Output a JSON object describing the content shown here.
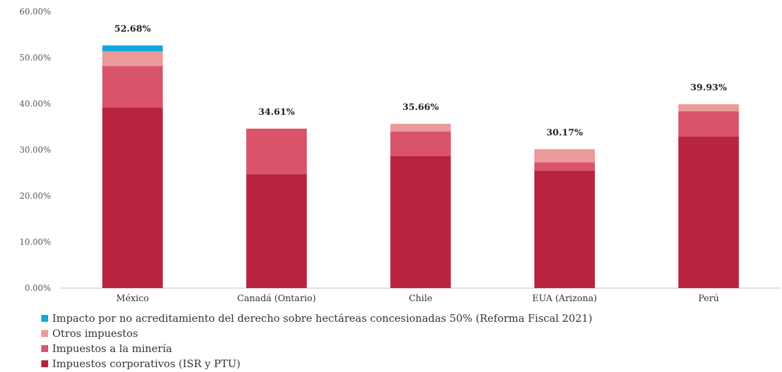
{
  "chart_data": {
    "type": "bar",
    "stacked": true,
    "categories": [
      "México",
      "Canadá (Ontario)",
      "Chile",
      "EUA (Arizona)",
      "Perú"
    ],
    "series": [
      {
        "name": "Impuestos corporativos (ISR y PTU)",
        "color": "#b8243e",
        "values": [
          39.2,
          24.7,
          28.7,
          25.5,
          32.9
        ]
      },
      {
        "name": "Impuestos a la minería",
        "color": "#d9536a",
        "values": [
          9.0,
          9.91,
          5.3,
          1.8,
          5.5
        ]
      },
      {
        "name": "Otros impuestos",
        "color": "#eb9a9a",
        "values": [
          3.2,
          0.0,
          1.66,
          2.87,
          1.53
        ]
      },
      {
        "name": "Impacto por no acreditamiento del derecho sobre hectáreas concesionadas 50% (Reforma Fiscal 2021)",
        "color": "#12a8e0",
        "values": [
          1.28,
          0.0,
          0.0,
          0.0,
          0.0
        ]
      }
    ],
    "totals": [
      "52.68%",
      "34.61%",
      "35.66%",
      "30.17%",
      "39.93%"
    ],
    "y_ticks": [
      "0.00%",
      "10.00%",
      "20.00%",
      "30.00%",
      "40.00%",
      "50.00%",
      "60.00%"
    ],
    "ylim": [
      0,
      60
    ],
    "title": "",
    "xlabel": "",
    "ylabel": "",
    "grid": false,
    "legend_position": "bottom-left",
    "legend_order": [
      3,
      2,
      1,
      0
    ]
  }
}
